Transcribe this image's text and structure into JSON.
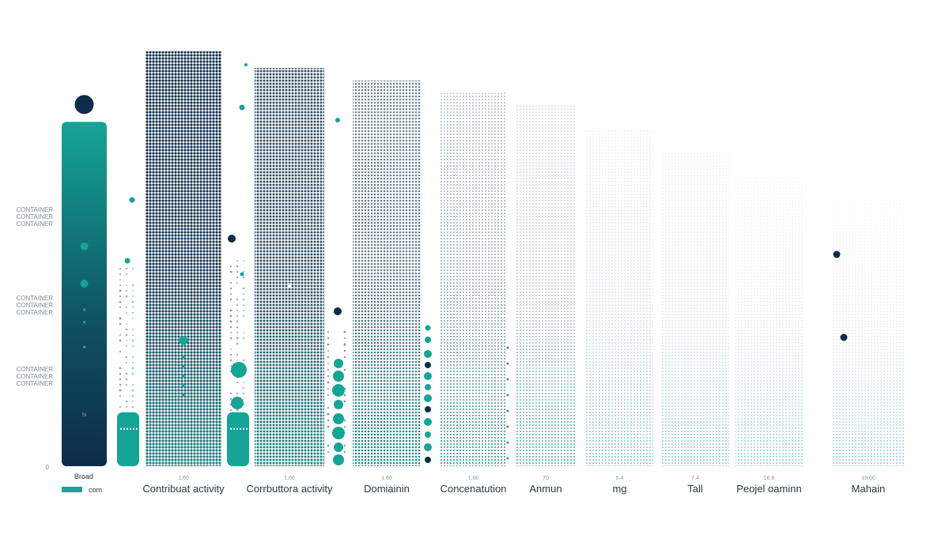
{
  "chart_data": {
    "type": "bar",
    "title": "",
    "xlabel": "",
    "ylabel": "",
    "ylim": [
      0,
      100
    ],
    "grid": false,
    "legend_position": "bottom-left",
    "legend": {
      "title": "Broad",
      "items": [
        {
          "label": "com",
          "color": "#14a596"
        }
      ]
    },
    "y_axis": {
      "zero_label": "0",
      "side_labels": [
        [
          "CONTAINER",
          "CONTAINER",
          "CONTAINER"
        ],
        [
          "CONTAINER",
          "CONTAINER",
          "CONTAINER"
        ],
        [
          "CONTAINER",
          "CONTAINER",
          "CONTAINER"
        ]
      ]
    },
    "summary_bar": {
      "value": 83,
      "inner_value": 55,
      "color_top": "#14a596",
      "color_bottom": "#0d2c4a",
      "marker_label": "N"
    },
    "categories": [
      "Contribuat activity",
      "Corrbuttora activity",
      "Domiainin",
      "Concenatution",
      "Anmun",
      "mg",
      "Tall",
      "Peojel oaminn",
      "Mahain"
    ],
    "value_labels": [
      "1.60",
      "1.60",
      "1.60",
      "1.60",
      "70",
      "5.4",
      "7.4",
      "16.8",
      "19.00"
    ],
    "values": [
      100,
      96,
      93,
      90,
      87,
      81,
      76,
      70,
      65
    ],
    "intensity": [
      1.0,
      0.9,
      0.72,
      0.48,
      0.36,
      0.25,
      0.2,
      0.16,
      0.13
    ],
    "small_bars": [
      {
        "after": 0,
        "value": 13
      },
      {
        "after": 1,
        "value": 13
      }
    ],
    "colors": {
      "dark": "#0d2c4a",
      "teal": "#14a596"
    }
  }
}
